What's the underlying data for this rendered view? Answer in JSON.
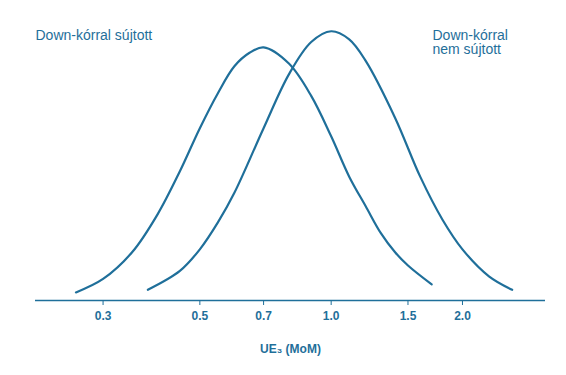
{
  "chart_data": {
    "type": "line",
    "x_label": "UE₃ (MoM)",
    "log": "x",
    "xlim": [
      0.21,
      3.1
    ],
    "xticks": [
      0.3,
      0.5,
      0.7,
      {
        "value": 1,
        "label": "1.0"
      },
      1.5,
      {
        "value": 2,
        "label": "2.0"
      }
    ],
    "ylim": [
      0,
      1.04
    ],
    "tick_labels": "x",
    "series": [
      {
        "name": "Down-kórral sújtott",
        "color": "#1f6f9a",
        "x": [
          0.26,
          0.3,
          0.35,
          0.4,
          0.45,
          0.5,
          0.55,
          0.6,
          0.65,
          0.7,
          0.8,
          0.9,
          1.0,
          1.1,
          1.2,
          1.3,
          1.4,
          1.5,
          1.7
        ],
        "values": [
          0.03,
          0.08,
          0.18,
          0.32,
          0.48,
          0.64,
          0.77,
          0.87,
          0.92,
          0.94,
          0.88,
          0.76,
          0.61,
          0.46,
          0.35,
          0.25,
          0.18,
          0.13,
          0.06
        ]
      },
      {
        "name": "Down-kórral nem sújtott",
        "color": "#1f6f9a",
        "x": [
          0.38,
          0.45,
          0.5,
          0.55,
          0.6,
          0.7,
          0.8,
          0.9,
          1.0,
          1.1,
          1.2,
          1.4,
          1.6,
          1.8,
          2.0,
          2.3,
          2.6
        ],
        "values": [
          0.04,
          0.11,
          0.19,
          0.29,
          0.4,
          0.64,
          0.84,
          0.96,
          1.0,
          0.97,
          0.89,
          0.68,
          0.46,
          0.3,
          0.19,
          0.09,
          0.04
        ]
      }
    ]
  }
}
